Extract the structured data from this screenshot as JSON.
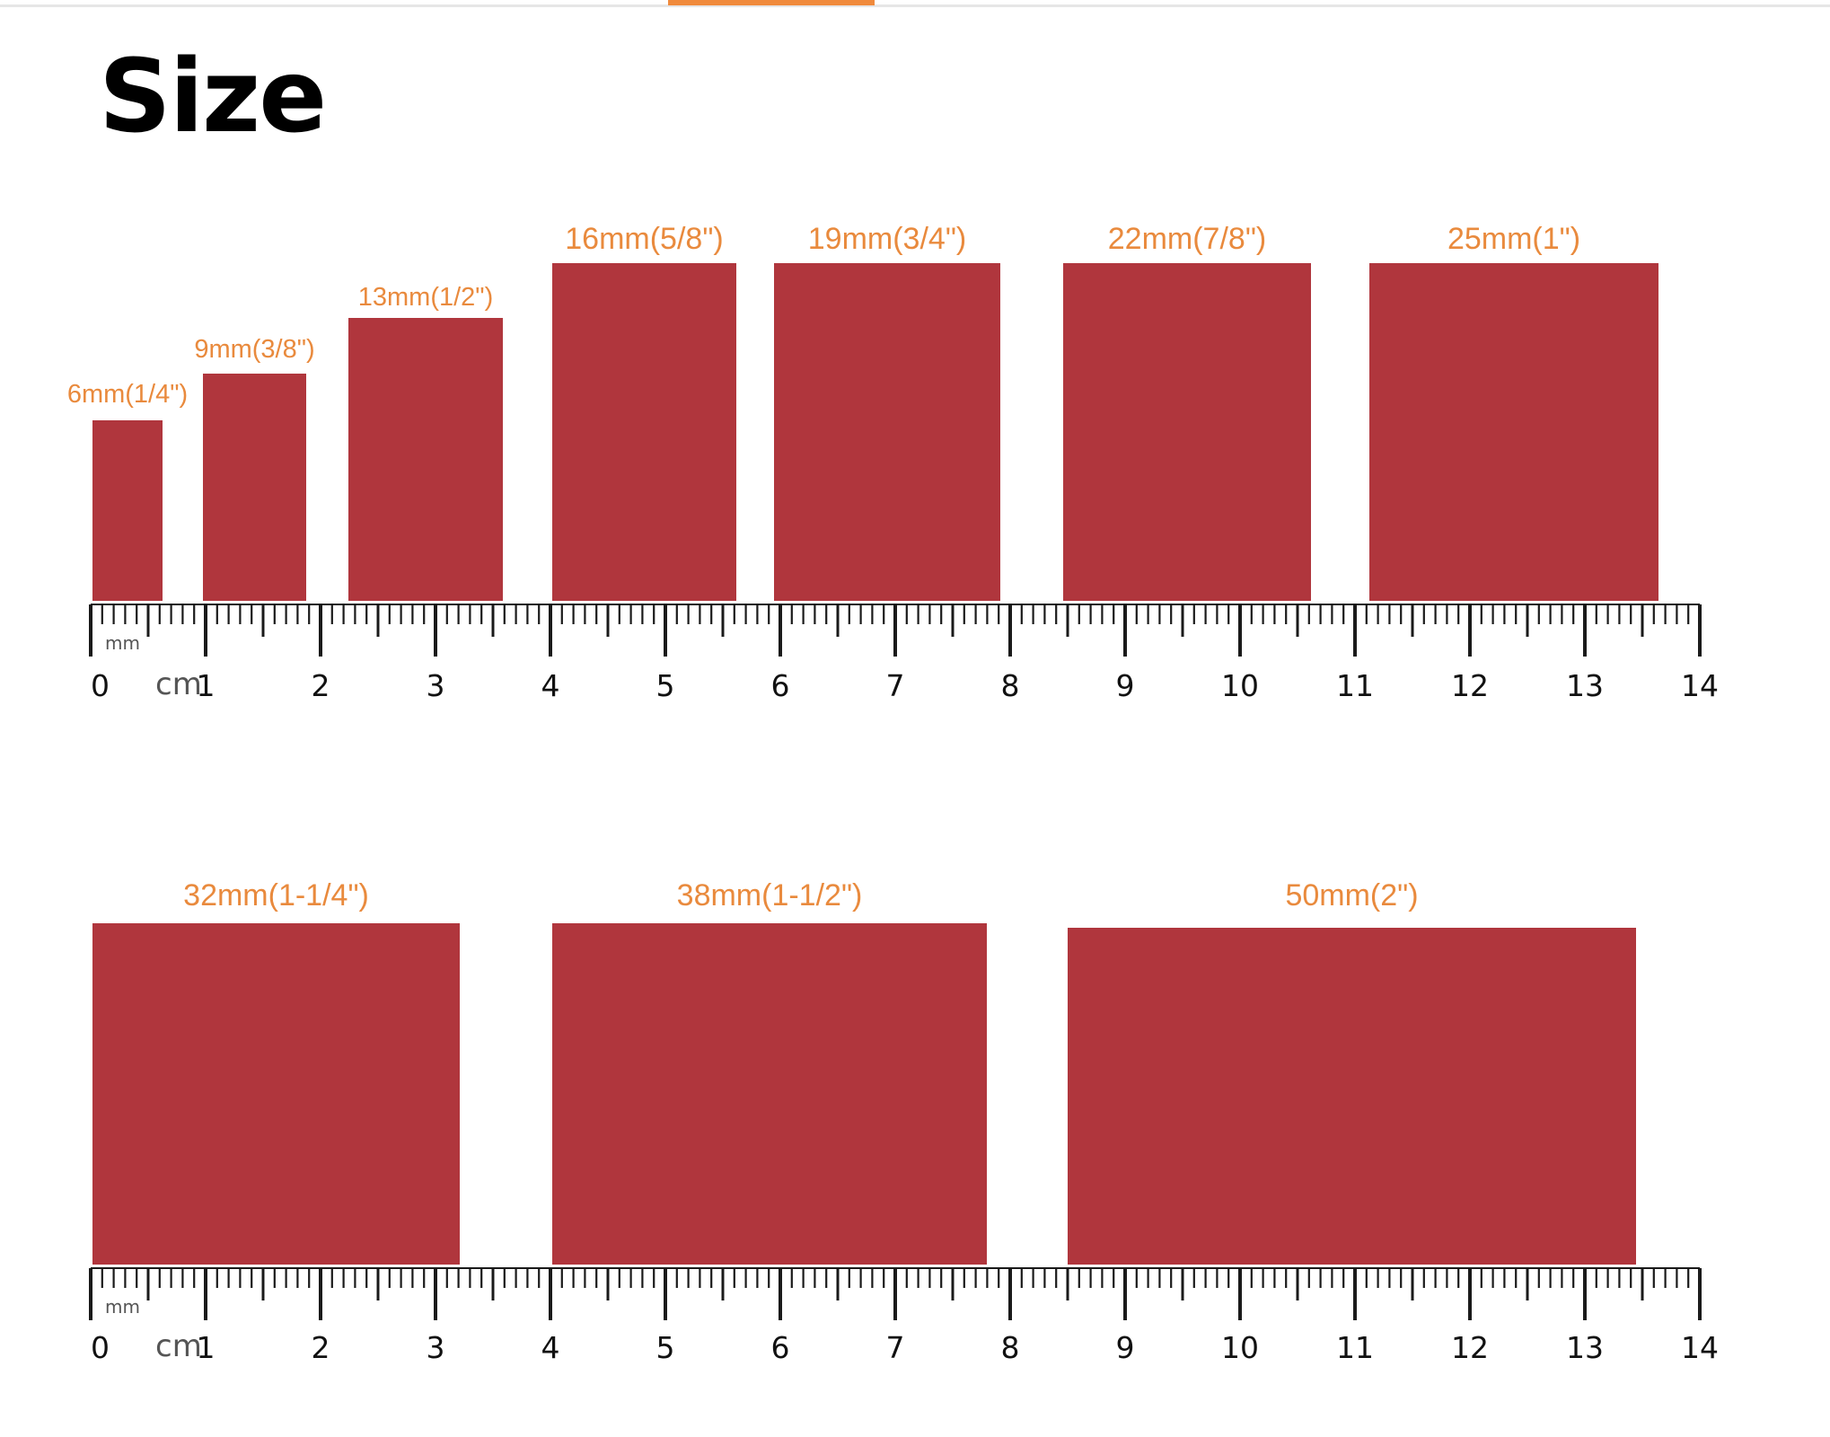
{
  "title": "Size",
  "colors": {
    "swatch": "#b0363d",
    "label": "#e98a3d",
    "ruler": "#1a1a1a",
    "accent": "#f08a3c"
  },
  "rulers": [
    {
      "unit_cm": "cm",
      "unit_mm": "mm",
      "tick_labels": [
        "0",
        "1",
        "2",
        "3",
        "4",
        "5",
        "6",
        "7",
        "8",
        "9",
        "10",
        "11",
        "12",
        "13",
        "14"
      ],
      "swatches": [
        {
          "label": "6mm(1/4\")",
          "size_mm": 6
        },
        {
          "label": "9mm(3/8\")",
          "size_mm": 9
        },
        {
          "label": "13mm(1/2\")",
          "size_mm": 13
        },
        {
          "label": "16mm(5/8\")",
          "size_mm": 16
        },
        {
          "label": "19mm(3/4\")",
          "size_mm": 19
        },
        {
          "label": "22mm(7/8\")",
          "size_mm": 22
        },
        {
          "label": "25mm(1\")",
          "size_mm": 25
        }
      ]
    },
    {
      "unit_cm": "cm",
      "unit_mm": "mm",
      "tick_labels": [
        "0",
        "1",
        "2",
        "3",
        "4",
        "5",
        "6",
        "7",
        "8",
        "9",
        "10",
        "11",
        "12",
        "13",
        "14"
      ],
      "swatches": [
        {
          "label": "32mm(1-1/4\")",
          "size_mm": 32
        },
        {
          "label": "38mm(1-1/2\")",
          "size_mm": 38
        },
        {
          "label": "50mm(2\")",
          "size_mm": 50
        }
      ]
    }
  ]
}
